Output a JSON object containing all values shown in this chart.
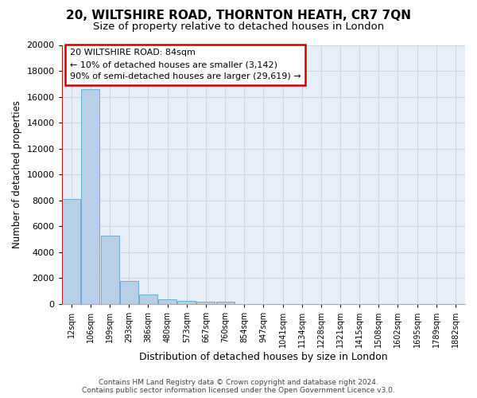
{
  "title_line1": "20, WILTSHIRE ROAD, THORNTON HEATH, CR7 7QN",
  "title_line2": "Size of property relative to detached houses in London",
  "xlabel": "Distribution of detached houses by size in London",
  "ylabel": "Number of detached properties",
  "footer_line1": "Contains HM Land Registry data © Crown copyright and database right 2024.",
  "footer_line2": "Contains public sector information licensed under the Open Government Licence v3.0.",
  "annotation_line1": "20 WILTSHIRE ROAD: 84sqm",
  "annotation_line2": "← 10% of detached houses are smaller (3,142)",
  "annotation_line3": "90% of semi-detached houses are larger (29,619) →",
  "bar_labels": [
    "12sqm",
    "106sqm",
    "199sqm",
    "293sqm",
    "386sqm",
    "480sqm",
    "573sqm",
    "667sqm",
    "760sqm",
    "854sqm",
    "947sqm",
    "1041sqm",
    "1134sqm",
    "1228sqm",
    "1321sqm",
    "1415sqm",
    "1508sqm",
    "1602sqm",
    "1695sqm",
    "1789sqm",
    "1882sqm"
  ],
  "bar_values": [
    8100,
    16600,
    5300,
    1750,
    750,
    350,
    220,
    180,
    160,
    0,
    0,
    0,
    0,
    0,
    0,
    0,
    0,
    0,
    0,
    0,
    0
  ],
  "bar_color": "#b8cfe8",
  "bar_edge_color": "#6baed6",
  "red_line_x": -0.5,
  "highlight_color": "#cc0000",
  "ylim": [
    0,
    20000
  ],
  "yticks": [
    0,
    2000,
    4000,
    6000,
    8000,
    10000,
    12000,
    14000,
    16000,
    18000,
    20000
  ],
  "grid_color": "#c8d4e8",
  "bg_color": "#e8eef8",
  "annotation_box_color": "#cc0000",
  "title_fontsize": 11,
  "subtitle_fontsize": 9.5,
  "xlabel_fontsize": 9,
  "ylabel_fontsize": 8.5,
  "tick_fontsize": 8,
  "xtick_fontsize": 7,
  "annotation_fontsize": 8,
  "footer_fontsize": 6.5
}
